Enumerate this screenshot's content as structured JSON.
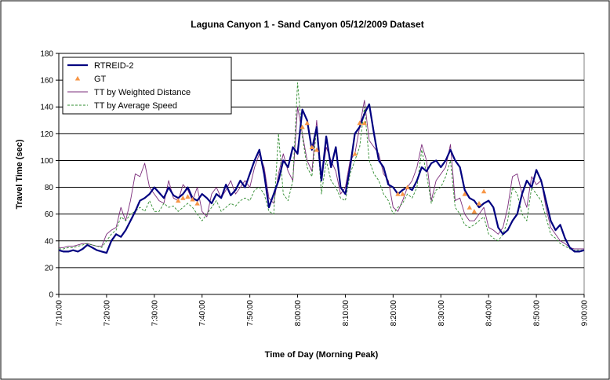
{
  "chart_data": {
    "type": "line",
    "title": "Laguna Canyon 1 - Sand Canyon 05/12/2009 Dataset",
    "xlabel": "Time of Day (Morning Peak)",
    "ylabel": "Travel Time (sec)",
    "ylim": [
      0,
      180
    ],
    "yticks": [
      0,
      20,
      40,
      60,
      80,
      100,
      120,
      140,
      160,
      180
    ],
    "grid": true,
    "legend": "upper left",
    "categories": [
      "7:10:00",
      null,
      null,
      null,
      null,
      null,
      null,
      null,
      null,
      null,
      "7:20:00",
      null,
      null,
      null,
      null,
      null,
      null,
      null,
      null,
      null,
      "7:30:00",
      null,
      null,
      null,
      null,
      null,
      null,
      null,
      null,
      null,
      "7:40:00",
      null,
      null,
      null,
      null,
      null,
      null,
      null,
      null,
      null,
      "7:50:00",
      null,
      null,
      null,
      null,
      null,
      null,
      null,
      null,
      null,
      "8:00:00",
      null,
      null,
      null,
      null,
      null,
      null,
      null,
      null,
      null,
      "8:10:00",
      null,
      null,
      null,
      null,
      null,
      null,
      null,
      null,
      null,
      "8:20:00",
      null,
      null,
      null,
      null,
      null,
      null,
      null,
      null,
      null,
      "8:30:00",
      null,
      null,
      null,
      null,
      null,
      null,
      null,
      null,
      null,
      "8:40:00",
      null,
      null,
      null,
      null,
      null,
      null,
      null,
      null,
      null,
      "8:50:00",
      null,
      null,
      null,
      null,
      null,
      null,
      null,
      null,
      null,
      "9:00:00"
    ],
    "series": [
      {
        "name": "RTREID-2",
        "color": "#000080",
        "width": 2.2,
        "dash": "solid",
        "marker": "none",
        "values": [
          33,
          32,
          32,
          33,
          32,
          34,
          37,
          35,
          33,
          32,
          31,
          40,
          45,
          43,
          48,
          55,
          62,
          70,
          72,
          75,
          80,
          76,
          72,
          80,
          74,
          72,
          75,
          80,
          72,
          70,
          75,
          72,
          68,
          75,
          72,
          82,
          74,
          78,
          85,
          80,
          90,
          100,
          108,
          90,
          65,
          75,
          85,
          100,
          95,
          110,
          105,
          138,
          130,
          108,
          125,
          85,
          118,
          95,
          110,
          80,
          75,
          95,
          120,
          125,
          135,
          142,
          120,
          100,
          95,
          82,
          80,
          75,
          78,
          80,
          78,
          85,
          95,
          92,
          98,
          100,
          95,
          100,
          108,
          100,
          95,
          78,
          72,
          70,
          65,
          68,
          70,
          65,
          50,
          45,
          48,
          55,
          60,
          75,
          85,
          80,
          93,
          85,
          70,
          55,
          48,
          52,
          42,
          35,
          32,
          32,
          33
        ]
      },
      {
        "name": "GT",
        "color": "#f79646",
        "width": 0,
        "dash": "none",
        "marker": "triangle",
        "values": [
          null,
          null,
          null,
          null,
          null,
          null,
          null,
          null,
          null,
          null,
          null,
          null,
          null,
          null,
          null,
          null,
          null,
          null,
          null,
          null,
          null,
          null,
          null,
          null,
          null,
          70,
          72,
          73,
          71,
          68,
          null,
          null,
          null,
          null,
          null,
          null,
          null,
          null,
          null,
          null,
          null,
          null,
          null,
          null,
          null,
          null,
          null,
          null,
          null,
          null,
          null,
          125,
          128,
          110,
          108,
          null,
          null,
          null,
          null,
          null,
          null,
          null,
          105,
          128,
          128,
          null,
          null,
          null,
          null,
          null,
          null,
          75,
          75,
          80,
          null,
          null,
          null,
          null,
          null,
          null,
          null,
          null,
          null,
          null,
          null,
          75,
          65,
          62,
          68,
          77,
          null,
          null,
          null,
          null,
          null,
          null,
          null,
          null,
          null,
          null,
          null,
          null,
          null,
          null,
          null,
          null,
          null,
          null,
          null,
          null,
          null
        ]
      },
      {
        "name": "TT by Weighted Distance",
        "color": "#7b2c7b",
        "width": 0.9,
        "dash": "solid",
        "marker": "none",
        "values": [
          35,
          35,
          36,
          36,
          37,
          38,
          38,
          37,
          36,
          36,
          45,
          48,
          50,
          65,
          55,
          70,
          90,
          88,
          98,
          80,
          75,
          70,
          68,
          85,
          72,
          70,
          82,
          78,
          70,
          80,
          62,
          58,
          75,
          80,
          72,
          78,
          85,
          75,
          80,
          85,
          80,
          95,
          105,
          95,
          72,
          68,
          90,
          105,
          92,
          85,
          140,
          120,
          100,
          92,
          130,
          85,
          110,
          100,
          92,
          75,
          80,
          100,
          105,
          125,
          145,
          115,
          110,
          105,
          90,
          85,
          65,
          62,
          70,
          80,
          85,
          95,
          112,
          100,
          70,
          85,
          90,
          95,
          112,
          70,
          72,
          60,
          55,
          55,
          60,
          65,
          50,
          48,
          45,
          50,
          65,
          88,
          90,
          75,
          65,
          88,
          82,
          85,
          65,
          50,
          45,
          40,
          38,
          35,
          34,
          34,
          34
        ]
      },
      {
        "name": "TT by Average Speed",
        "color": "#2e8b2e",
        "width": 0.9,
        "dash": "dashed",
        "marker": "none",
        "values": [
          34,
          34,
          35,
          35,
          36,
          37,
          38,
          37,
          36,
          35,
          40,
          45,
          48,
          58,
          55,
          60,
          62,
          65,
          62,
          70,
          62,
          62,
          68,
          65,
          66,
          62,
          65,
          68,
          65,
          60,
          55,
          60,
          65,
          70,
          62,
          65,
          68,
          66,
          70,
          72,
          70,
          78,
          80,
          75,
          62,
          60,
          120,
          75,
          70,
          85,
          158,
          118,
          95,
          88,
          125,
          75,
          100,
          85,
          80,
          72,
          70,
          90,
          100,
          110,
          140,
          100,
          90,
          85,
          75,
          70,
          60,
          65,
          68,
          75,
          72,
          80,
          108,
          90,
          68,
          78,
          80,
          88,
          100,
          65,
          60,
          52,
          50,
          52,
          55,
          58,
          45,
          42,
          40,
          45,
          55,
          80,
          75,
          60,
          55,
          80,
          75,
          70,
          58,
          45,
          42,
          38,
          36,
          34,
          33,
          33,
          33
        ]
      }
    ]
  }
}
